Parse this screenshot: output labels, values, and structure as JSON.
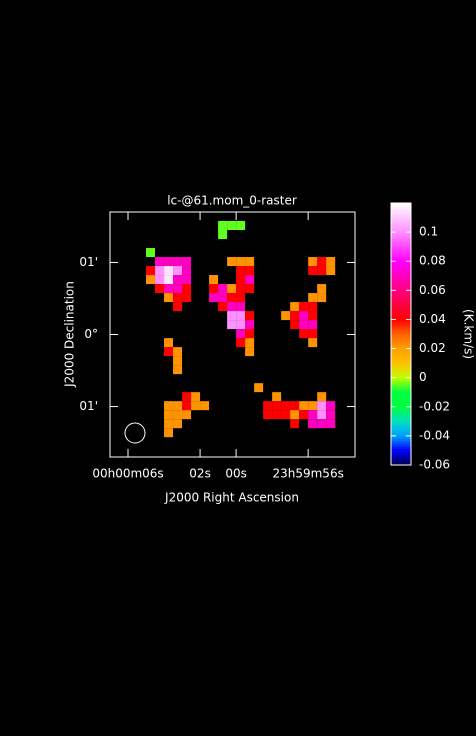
{
  "chart_data": {
    "type": "heatmap",
    "title": "lc-@61.mom_0-raster",
    "xlabel": "J2000 Right Ascension",
    "ylabel": "J2000 Declination",
    "colorbar_label": "(K.km/s)",
    "xlim": [
      7,
      -6.6
    ],
    "ylim": [
      -1.7,
      1.7
    ],
    "xticks": [
      {
        "value": 6,
        "label": "00h00m06s"
      },
      {
        "value": 2,
        "label": "02s"
      },
      {
        "value": 0,
        "label": "00s"
      },
      {
        "value": -4,
        "label": "23h59m56s"
      }
    ],
    "yticks": [
      {
        "value": 1,
        "label": "01'"
      },
      {
        "value": 0,
        "label": "0°"
      },
      {
        "value": -1,
        "label": "01'"
      }
    ],
    "clim": [
      -0.06,
      0.12
    ],
    "cticks": [
      0.1,
      0.08,
      0.06,
      0.04,
      0.02,
      0,
      -0.02,
      -0.04,
      -0.06
    ],
    "colormap": [
      {
        "value": -0.06,
        "color": "#000050"
      },
      {
        "value": -0.05,
        "color": "#0000ff"
      },
      {
        "value": -0.04,
        "color": "#00a0ff"
      },
      {
        "value": -0.03,
        "color": "#00e0c0"
      },
      {
        "value": -0.02,
        "color": "#00ff40"
      },
      {
        "value": -0.01,
        "color": "#00ff40"
      },
      {
        "value": 0,
        "color": "#c0ff00"
      },
      {
        "value": 0.01,
        "color": "#ffc000"
      },
      {
        "value": 0.02,
        "color": "#ffa000"
      },
      {
        "value": 0.03,
        "color": "#ff6000"
      },
      {
        "value": 0.04,
        "color": "#ff0000"
      },
      {
        "value": 0.06,
        "color": "#ff0080"
      },
      {
        "value": 0.08,
        "color": "#ff00ff"
      },
      {
        "value": 0.1,
        "color": "#ff90ff"
      },
      {
        "value": 0.12,
        "color": "#ffffff"
      }
    ],
    "x": [
      0.75,
      0.25,
      -0.25,
      0.75,
      4.75,
      4.25,
      3.75,
      3.25,
      2.75,
      4.75,
      4.25,
      3.75,
      3.25,
      2.75,
      4.75,
      4.25,
      3.75,
      3.25,
      2.75,
      4.25,
      3.75,
      3.25,
      2.75,
      3.75,
      3.25,
      2.75,
      3.25,
      0.25,
      -0.25,
      -0.75,
      -0.25,
      -0.75,
      1.25,
      -0.25,
      -0.75,
      1.25,
      0.75,
      0.25,
      -0.25,
      -0.75,
      1.25,
      0.75,
      0.25,
      -0.25,
      0.75,
      0.25,
      -0.25,
      0.25,
      -0.25,
      -0.75,
      0.25,
      -0.25,
      -0.75,
      -0.25,
      -0.75,
      -0.25,
      -0.75,
      -0.75,
      -4.25,
      -4.75,
      -5.25,
      -4.25,
      -4.75,
      -5.25,
      -4.75,
      -4.25,
      -4.75,
      -3.25,
      -3.75,
      -4.25,
      -2.75,
      -3.25,
      -3.75,
      -4.25,
      -3.25,
      -3.75,
      -4.25,
      -3.75,
      -4.25,
      -4.25,
      3.75,
      3.75,
      3.25,
      3.25,
      3.25,
      2.75,
      2.25,
      3.75,
      3.25,
      2.75,
      2.25,
      1.75,
      3.75,
      3.25,
      2.75,
      3.75,
      3.25,
      3.75,
      -1.25,
      -2.25,
      -4.75,
      -1.75,
      -2.25,
      -2.75,
      -3.25,
      -3.75,
      -4.25,
      -4.75,
      -5.25,
      -1.75,
      -2.25,
      -2.75,
      -3.25,
      -3.75,
      -4.25,
      -4.75,
      -5.25,
      -3.25,
      -4.25,
      -4.75,
      -5.25
    ],
    "y": [
      1.5125,
      1.5125,
      1.5125,
      1.3875,
      1.1375,
      1.0125,
      1.0125,
      1.0125,
      1.0125,
      0.8875,
      0.8875,
      0.8875,
      0.8875,
      0.8875,
      0.7625,
      0.7625,
      0.7625,
      0.7625,
      0.7625,
      0.6375,
      0.6375,
      0.6375,
      0.6375,
      0.5125,
      0.5125,
      0.5125,
      0.3875,
      1.0125,
      1.0125,
      1.0125,
      0.8875,
      0.8875,
      0.7625,
      0.7625,
      0.7625,
      0.6375,
      0.6375,
      0.6375,
      0.6375,
      0.6375,
      0.5125,
      0.5125,
      0.5125,
      0.5125,
      0.3875,
      0.3875,
      0.3875,
      0.2625,
      0.2625,
      0.2625,
      0.1375,
      0.1375,
      0.1375,
      0.0125,
      0.0125,
      -0.1125,
      -0.1125,
      -0.2375,
      1.0125,
      1.0125,
      1.0125,
      0.8875,
      0.8875,
      0.8875,
      0.6375,
      0.5125,
      0.5125,
      0.3875,
      0.3875,
      0.3875,
      0.2625,
      0.2625,
      0.2625,
      0.2625,
      0.1375,
      0.1375,
      0.1375,
      0.0125,
      0.0125,
      -0.1125,
      -0.1125,
      -0.2375,
      -0.2375,
      -0.3625,
      -0.4875,
      -0.8625,
      -0.8625,
      -0.9875,
      -0.9875,
      -0.9875,
      -0.9875,
      -0.9875,
      -1.1125,
      -1.1125,
      -1.1125,
      -1.2375,
      -1.2375,
      -1.3625,
      -0.7375,
      -0.8625,
      -0.8625,
      -0.9875,
      -0.9875,
      -0.9875,
      -0.9875,
      -0.9875,
      -0.9875,
      -0.9875,
      -0.9875,
      -1.1125,
      -1.1125,
      -1.1125,
      -1.1125,
      -1.1125,
      -1.1125,
      -1.1125,
      -1.1125,
      -1.2375,
      -1.2375,
      -1.2375,
      -1.2375
    ],
    "values": [
      -0.005,
      -0.005,
      -0.005,
      -0.005,
      -0.005,
      0.07,
      0.07,
      0.07,
      0.07,
      0.04,
      0.1,
      0.115,
      0.1,
      0.07,
      0.022,
      0.1,
      0.115,
      0.07,
      0.07,
      0.04,
      0.07,
      0.07,
      0.04,
      0.022,
      0.04,
      0.04,
      0.04,
      0.022,
      0.022,
      0.022,
      0.04,
      0.04,
      0.022,
      0.04,
      0.07,
      0.04,
      0.07,
      0.022,
      0.04,
      0.04,
      0.07,
      0.07,
      0.04,
      0.04,
      0.04,
      0.07,
      0.07,
      0.1,
      0.1,
      0.04,
      0.1,
      0.1,
      0.07,
      0.07,
      0.04,
      0.04,
      0.022,
      0.022,
      0.022,
      0.04,
      0.022,
      0.04,
      0.04,
      0.022,
      0.022,
      0.022,
      0.022,
      0.022,
      0.04,
      0.04,
      0.022,
      0.04,
      0.07,
      0.04,
      0.04,
      0.07,
      0.07,
      0.04,
      0.04,
      0.022,
      0.022,
      0.04,
      0.022,
      0.022,
      0.022,
      0.04,
      0.022,
      0.022,
      0.022,
      0.04,
      0.022,
      0.022,
      0.022,
      0.022,
      0.022,
      0.022,
      0.022,
      0.022,
      0.022,
      0.022,
      0.022,
      0.04,
      0.04,
      0.04,
      0.04,
      0.022,
      0.022,
      0.1,
      0.07,
      0.04,
      0.04,
      0.04,
      0.022,
      0.04,
      0.07,
      0.1,
      0.07,
      0.04,
      0.07,
      0.07,
      0.07
    ]
  }
}
